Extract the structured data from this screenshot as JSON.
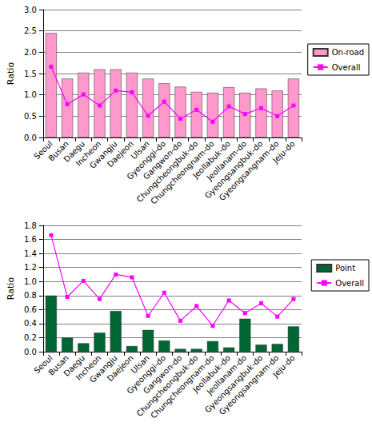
{
  "chart_data": [
    {
      "type": "bar",
      "y_label": "Ratio",
      "categories": [
        "Seoul",
        "Busan",
        "Daegu",
        "Incheon",
        "Gwangju",
        "Daejeon",
        "Ulsan",
        "Gyeonggi-do",
        "Gangwon-do",
        "Chungcheongbuk-do",
        "Chungcheongnam-do",
        "Jeollabuk-do",
        "Jeollanam-do",
        "Gyeongsangbuk-do",
        "Gyeongsangnam-do",
        "Jeju-do"
      ],
      "series": [
        {
          "name": "On-road",
          "type": "bar",
          "color": "#ff99cc",
          "values": [
            2.45,
            1.38,
            1.52,
            1.6,
            1.6,
            1.52,
            1.38,
            1.27,
            1.19,
            1.07,
            1.05,
            1.18,
            1.05,
            1.15,
            1.1,
            1.38
          ]
        },
        {
          "name": "Overall",
          "type": "line",
          "color": "#ff00ff",
          "marker": "square",
          "values": [
            1.66,
            0.78,
            1.01,
            0.75,
            1.1,
            1.06,
            0.51,
            0.84,
            0.44,
            0.65,
            0.37,
            0.73,
            0.55,
            0.69,
            0.5,
            0.75
          ]
        }
      ],
      "ylim": [
        0,
        3
      ],
      "yticks": [
        {
          "value": 0,
          "label": "0.0"
        },
        0.5,
        {
          "value": 1,
          "label": "1.0"
        },
        1.5,
        {
          "value": 2,
          "label": "2.0"
        },
        2.5,
        {
          "value": 3,
          "label": "3.0"
        }
      ],
      "grid": true,
      "legend": "right"
    },
    {
      "type": "bar",
      "y_label": "Ratio",
      "categories": [
        "Seoul",
        "Busan",
        "Daegu",
        "Incheon",
        "Gwangju",
        "Daejeon",
        "Ulsan",
        "Gyeonggi-do",
        "Gangwon-do",
        "Chungcheongbuk-do",
        "Chungcheongnam-do",
        "Jeollabuk-do",
        "Jeollanam-do",
        "Gyeongsangbuk-do",
        "Gyeongsangnam-do",
        "Jeju-do"
      ],
      "series": [
        {
          "name": "Point",
          "type": "bar",
          "color": "#006633",
          "values": [
            0.8,
            0.2,
            0.12,
            0.27,
            0.58,
            0.08,
            0.31,
            0.16,
            0.04,
            0.04,
            0.15,
            0.06,
            0.47,
            0.1,
            0.11,
            0.36
          ]
        },
        {
          "name": "Overall",
          "type": "line",
          "color": "#ff00ff",
          "marker": "square",
          "values": [
            1.66,
            0.78,
            1.01,
            0.75,
            1.1,
            1.06,
            0.51,
            0.84,
            0.44,
            0.65,
            0.37,
            0.73,
            0.55,
            0.69,
            0.5,
            0.75
          ]
        }
      ],
      "ylim": [
        0,
        1.8
      ],
      "yticks": [
        {
          "value": 0,
          "label": "0.0"
        },
        0.2,
        0.4,
        0.6,
        0.8,
        {
          "value": 1,
          "label": "1.0"
        },
        1.2,
        1.4,
        1.6,
        1.8
      ],
      "grid": true,
      "legend": "right"
    }
  ]
}
